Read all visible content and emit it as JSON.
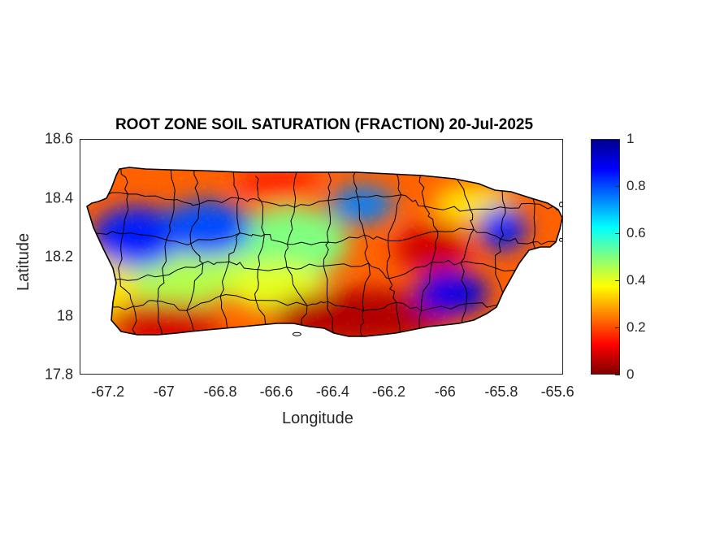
{
  "title": "ROOT ZONE SOIL SATURATION (FRACTION) 20-Jul-2025",
  "axes": {
    "xlabel": "Longitude",
    "ylabel": "Latitude",
    "xlim": [
      -67.3,
      -65.58
    ],
    "ylim": [
      17.8,
      18.6
    ],
    "xticks": [
      "-67.2",
      "-67",
      "-66.8",
      "-66.6",
      "-66.4",
      "-66.2",
      "-66",
      "-65.8",
      "-65.6"
    ],
    "yticks": [
      "18.6",
      "18.4",
      "18.2",
      "18",
      "17.8"
    ]
  },
  "colorbar": {
    "ticks": [
      "1",
      "0.8",
      "0.6",
      "0.4",
      "0.2",
      "0"
    ],
    "range": [
      0,
      1
    ],
    "colormap": "jet"
  },
  "map": {
    "region": "Puerto Rico",
    "variable": "root zone soil saturation fraction",
    "features": [
      "municipality-boundaries",
      "coastline"
    ],
    "wet_areas": [
      {
        "area": "west",
        "lon": -67.1,
        "lat": 18.27,
        "value": 0.85
      },
      {
        "area": "west-central",
        "lon": -66.85,
        "lat": 18.3,
        "value": 0.8
      },
      {
        "area": "north-central",
        "lon": -66.3,
        "lat": 18.38,
        "value": 0.75
      },
      {
        "area": "east",
        "lon": -65.8,
        "lat": 18.3,
        "value": 0.85
      },
      {
        "area": "southeast",
        "lon": -65.98,
        "lat": 18.08,
        "value": 0.9
      }
    ],
    "dry_areas": [
      {
        "area": "south",
        "lon": -66.3,
        "lat": 18.0,
        "value": 0.05
      },
      {
        "area": "southwest",
        "lon": -67.0,
        "lat": 17.98,
        "value": 0.08
      },
      {
        "area": "east-central",
        "lon": -66.05,
        "lat": 18.23,
        "value": 0.08
      },
      {
        "area": "north",
        "lon": -66.6,
        "lat": 18.45,
        "value": 0.15
      }
    ]
  }
}
